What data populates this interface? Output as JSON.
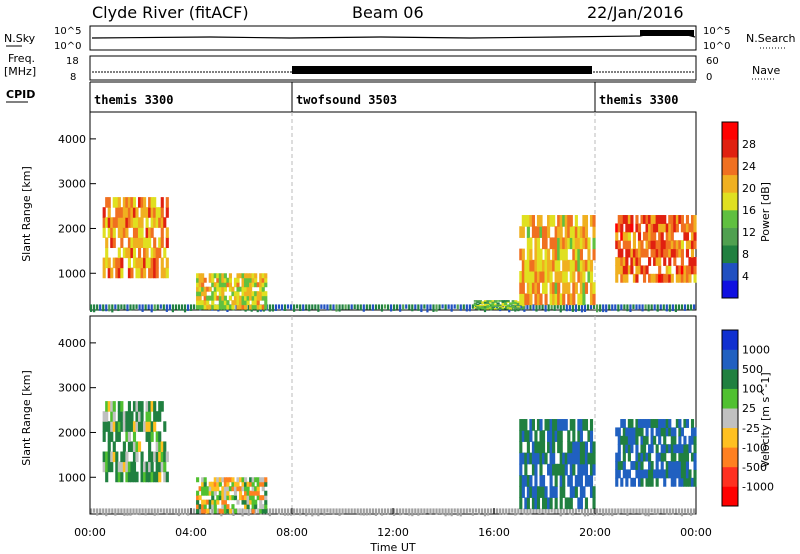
{
  "header": {
    "radar": "Clyde River (fitACF)",
    "beam": "Beam 06",
    "date": "22/Jan/2016"
  },
  "panels": {
    "nsky_label": "N.Sky",
    "nsky_top": "10^5",
    "nsky_bottom": "10^0",
    "nsearch_label": "N.Search",
    "nsearch_top": "10^5",
    "nsearch_bottom": "10^0",
    "freq_label_1": "Freq.",
    "freq_label_2": "[MHz]",
    "freq_top": "18",
    "freq_bottom": "8",
    "nave_label": "Nave",
    "nave_top": "60",
    "nave_bottom": "0",
    "cpid_label": "CPID"
  },
  "cpid_segments": [
    {
      "name": "themis 3300",
      "start_hour": 0,
      "end_hour": 8
    },
    {
      "name": "twofsound 3503",
      "start_hour": 8,
      "end_hour": 20
    },
    {
      "name": "themis 3300",
      "start_hour": 20,
      "end_hour": 24
    }
  ],
  "colors": {
    "scale": [
      "#1010e0",
      "#2050c0",
      "#208040",
      "#50a050",
      "#60c040",
      "#e0e020",
      "#f0b020",
      "#f07020",
      "#e02010",
      "#ff0000"
    ],
    "velocity_scale": [
      "#ff0000",
      "#ff3020",
      "#ff8020",
      "#ffc020",
      "#c0c0c0",
      "#50c030",
      "#208040",
      "#2060c0",
      "#1030d0"
    ],
    "ground_scatter": "#a0a0a0"
  },
  "chart_data": [
    {
      "type": "heatmap",
      "title": "",
      "ylabel": "Slant Range [km]",
      "xlabel": "",
      "x_range_hours": [
        0,
        24
      ],
      "ylim": [
        180,
        4600
      ],
      "y_ticks": [
        "1000",
        "2000",
        "3000",
        "4000"
      ],
      "colorbar": {
        "label": "Power [dB]",
        "range": [
          0,
          32
        ],
        "ticks": [
          "4",
          "8",
          "12",
          "16",
          "20",
          "24",
          "28"
        ]
      },
      "echo_regions": [
        {
          "x_start": 0.5,
          "x_end": 3.1,
          "y_start": 900,
          "y_end": 2700,
          "value": 22
        },
        {
          "x_start": 4.2,
          "x_end": 7.0,
          "y_start": 200,
          "y_end": 1000,
          "value": 18
        },
        {
          "x_start": 15.2,
          "x_end": 17.2,
          "y_start": 200,
          "y_end": 400,
          "value": 14
        },
        {
          "x_start": 17.0,
          "x_end": 20.0,
          "y_start": 300,
          "y_end": 2300,
          "value": 20
        },
        {
          "x_start": 20.8,
          "x_end": 24.0,
          "y_start": 800,
          "y_end": 2300,
          "value": 24
        }
      ]
    },
    {
      "type": "heatmap",
      "title": "",
      "ylabel": "Slant Range [km]",
      "xlabel": "Time UT",
      "x_range_hours": [
        0,
        24
      ],
      "x_ticks": [
        "00:00",
        "04:00",
        "08:00",
        "12:00",
        "16:00",
        "20:00",
        "00:00"
      ],
      "ylim": [
        180,
        4600
      ],
      "y_ticks": [
        "1000",
        "2000",
        "3000",
        "4000"
      ],
      "colorbar": {
        "label": "Velocity [m s^-1]",
        "ticks": [
          "1000",
          "500",
          "100",
          "25",
          "-25",
          "-100",
          "-500",
          "-1000"
        ]
      },
      "echo_regions": [
        {
          "x_start": 0.5,
          "x_end": 3.1,
          "y_start": 900,
          "y_end": 2700,
          "value": 100
        },
        {
          "x_start": 4.2,
          "x_end": 7.0,
          "y_start": 200,
          "y_end": 1000,
          "value": 0
        },
        {
          "x_start": 17.0,
          "x_end": 20.0,
          "y_start": 300,
          "y_end": 2300,
          "value": 500
        },
        {
          "x_start": 20.8,
          "x_end": 24.0,
          "y_start": 800,
          "y_end": 2300,
          "value": 500
        }
      ]
    }
  ]
}
